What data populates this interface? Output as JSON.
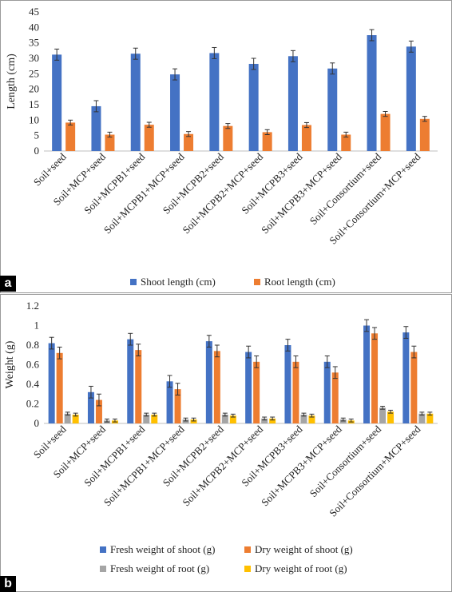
{
  "panel_labels": [
    "a",
    "b"
  ],
  "chart_data": [
    {
      "type": "bar",
      "panel": "a",
      "categories": [
        "Soil+seed",
        "Soil+MCP+seed",
        "Soil+MCPB1+seed",
        "Soil+MCPB1+MCP+seed",
        "Soil+MCPB2+seed",
        "Soil+MCPB2+MCP+seed",
        "Soil+MCPB3+seed",
        "Soil+MCPB3+MCP+seed",
        "Soil+Consortium+seed",
        "Soil+Consortium+MCP+seed"
      ],
      "series": [
        {
          "name": "Shoot length (cm)",
          "color": "#4472c4",
          "values": [
            31.2,
            14.5,
            31.5,
            24.8,
            31.7,
            28.2,
            30.7,
            26.7,
            37.5,
            33.8
          ],
          "errors": [
            1.8,
            1.8,
            1.8,
            1.8,
            1.8,
            1.8,
            1.8,
            1.8,
            1.8,
            1.8
          ]
        },
        {
          "name": "Root length (cm)",
          "color": "#ed7d31",
          "values": [
            9.2,
            5.3,
            8.5,
            5.5,
            8.1,
            6.1,
            8.4,
            5.3,
            12.0,
            10.4
          ],
          "errors": [
            0.8,
            0.8,
            0.8,
            0.8,
            0.8,
            0.8,
            0.8,
            0.8,
            0.8,
            0.8
          ]
        }
      ],
      "ylabel": "Length (cm)",
      "ylim": [
        0,
        45
      ],
      "yticks": [
        "0",
        "5",
        "10",
        "15",
        "20",
        "25",
        "30",
        "35",
        "40",
        "45"
      ],
      "grid": false,
      "legend_position": "bottom"
    },
    {
      "type": "bar",
      "panel": "b",
      "categories": [
        "Soil+seed",
        "Soil+MCP+seed",
        "Soil+MCPB1+seed",
        "Soil+MCPB1+MCP+seed",
        "Soil+MCPB2+seed",
        "Soil+MCPB2+MCP+seed",
        "Soil+MCPB3+seed",
        "Soil+MCPB3+MCP+seed",
        "Soil+Consortium+seed",
        "Soil+Consortium+MCP+seed"
      ],
      "series": [
        {
          "name": "Fresh weight of shoot (g)",
          "color": "#4472c4",
          "values": [
            0.82,
            0.32,
            0.86,
            0.43,
            0.84,
            0.73,
            0.8,
            0.63,
            1.0,
            0.93
          ],
          "errors": [
            0.06,
            0.06,
            0.06,
            0.06,
            0.06,
            0.06,
            0.06,
            0.06,
            0.06,
            0.06
          ]
        },
        {
          "name": "Dry weight of shoot (g)",
          "color": "#ed7d31",
          "values": [
            0.72,
            0.24,
            0.75,
            0.35,
            0.74,
            0.63,
            0.63,
            0.52,
            0.92,
            0.73
          ],
          "errors": [
            0.06,
            0.06,
            0.06,
            0.06,
            0.06,
            0.06,
            0.06,
            0.06,
            0.06,
            0.06
          ]
        },
        {
          "name": "Fresh weight of root (g)",
          "color": "#a5a5a5",
          "values": [
            0.1,
            0.03,
            0.09,
            0.04,
            0.09,
            0.05,
            0.09,
            0.04,
            0.16,
            0.1
          ],
          "errors": [
            0.015,
            0.015,
            0.015,
            0.015,
            0.015,
            0.015,
            0.015,
            0.015,
            0.015,
            0.015
          ]
        },
        {
          "name": "Dry weight of root (g)",
          "color": "#ffc000",
          "values": [
            0.09,
            0.03,
            0.09,
            0.04,
            0.08,
            0.05,
            0.08,
            0.03,
            0.12,
            0.1
          ],
          "errors": [
            0.015,
            0.015,
            0.015,
            0.015,
            0.015,
            0.015,
            0.015,
            0.015,
            0.015,
            0.015
          ]
        }
      ],
      "ylabel": "Weight (g)",
      "ylim": [
        0,
        1.2
      ],
      "yticks": [
        "0",
        "0.2",
        "0.4",
        "0.6",
        "0.8",
        "1",
        "1.2"
      ],
      "grid": false,
      "legend_position": "bottom"
    }
  ]
}
